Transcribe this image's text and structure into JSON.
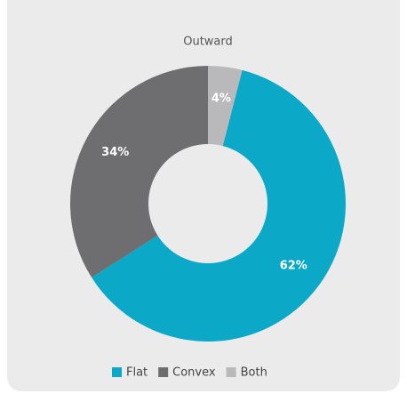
{
  "chart_data": {
    "type": "donut",
    "title": "Outward",
    "categories": [
      "Flat",
      "Convex",
      "Both"
    ],
    "values": [
      62,
      34,
      4
    ],
    "value_labels": [
      "62%",
      "34%",
      "4%"
    ],
    "colors": [
      "#0ba8c8",
      "#6e6e70",
      "#b9b9bb"
    ],
    "legend": "bottom"
  }
}
